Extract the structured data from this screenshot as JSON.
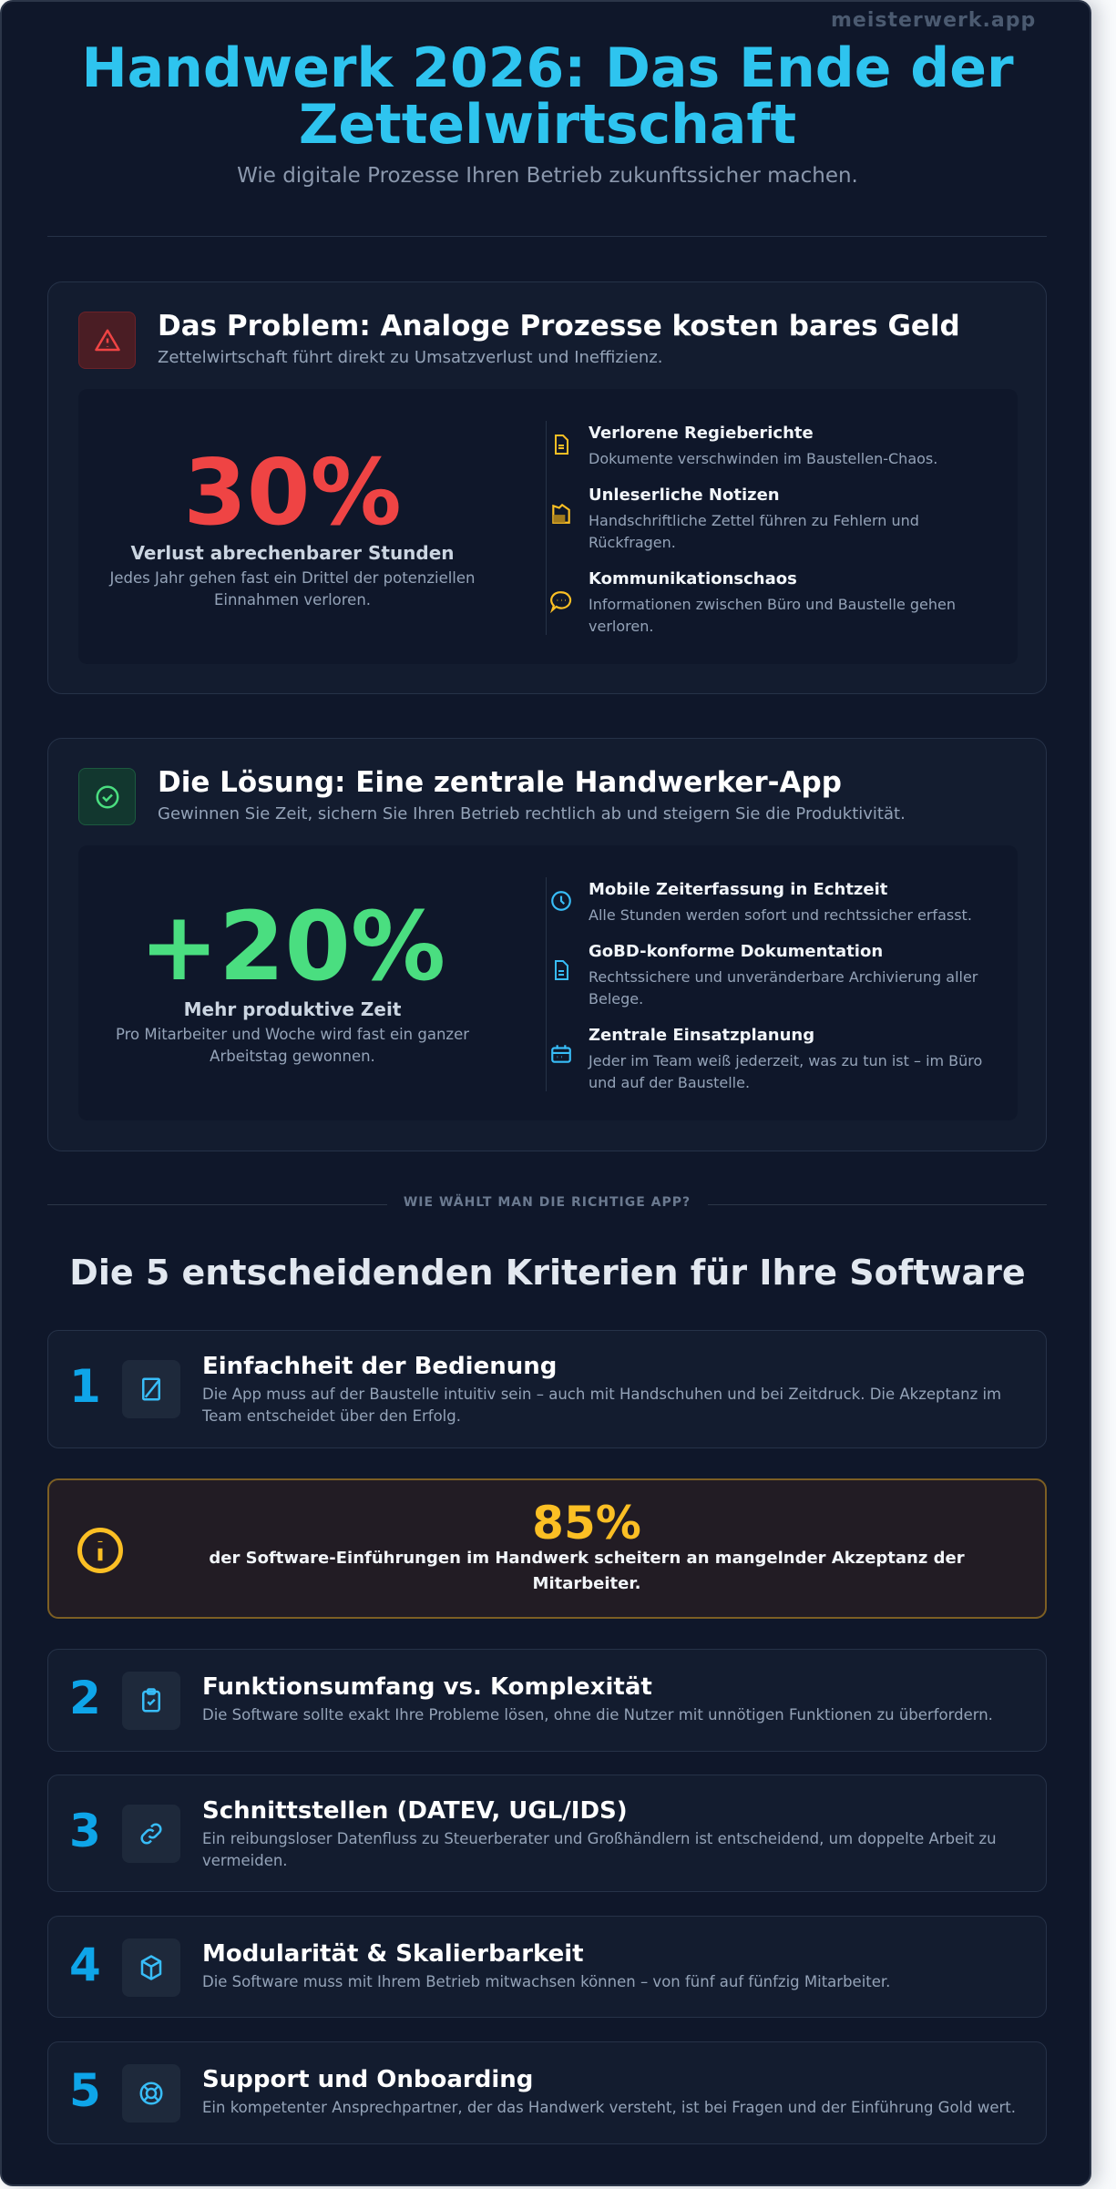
{
  "header": {
    "title_line1": "Handwerk 2026: Das Ende der",
    "title_line2": "Zettelwirtschaft",
    "subtitle": "Wie digitale Prozesse Ihren Betrieb zukunftssicher machen.",
    "watermark": "meisterwerk.app"
  },
  "colors": {
    "accent": "#2ec4ef",
    "problem": "#ef4444",
    "solution": "#4ade80",
    "warning": "#fbbf24",
    "number": "#0ea5e9",
    "background": "#0f172a"
  },
  "problem": {
    "icon": "warning-triangle-icon",
    "heading": "Das Problem: Analoge Prozesse kosten bares Geld",
    "subtitle": "Zettelwirtschaft führt direkt zu Umsatzverlust und Ineffizienz.",
    "stat": "30%",
    "stat_label": "Verlust abrechenbarer Stunden",
    "stat_desc": "Jedes Jahr gehen fast ein Drittel der potenziellen Einnahmen verloren.",
    "items": [
      {
        "icon": "document-icon",
        "title": "Verlorene Regieberichte",
        "desc": "Dokumente verschwinden im Baustellen-Chaos."
      },
      {
        "icon": "crumpled-note-icon",
        "title": "Unleserliche Notizen",
        "desc": "Handschriftliche Zettel führen zu Fehlern und Rückfragen."
      },
      {
        "icon": "chat-bubble-icon",
        "title": "Kommunikationschaos",
        "desc": "Informationen zwischen Büro und Baustelle gehen verloren."
      }
    ]
  },
  "solution": {
    "icon": "check-circle-icon",
    "heading": "Die Lösung: Eine zentrale Handwerker-App",
    "subtitle": "Gewinnen Sie Zeit, sichern Sie Ihren Betrieb rechtlich ab und steigern Sie die Produktivität.",
    "stat": "+20%",
    "stat_label": "Mehr produktive Zeit",
    "stat_desc": "Pro Mitarbeiter und Woche wird fast ein ganzer Arbeitstag gewonnen.",
    "items": [
      {
        "icon": "clock-icon",
        "title": "Mobile Zeiterfassung in Echtzeit",
        "desc": "Alle Stunden werden sofort und rechtssicher erfasst."
      },
      {
        "icon": "file-text-icon",
        "title": "GoBD-konforme Dokumentation",
        "desc": "Rechtssichere und unveränderbare Archivierung aller Belege."
      },
      {
        "icon": "calendar-icon",
        "title": "Zentrale Einsatzplanung",
        "desc": "Jeder im Team weiß jederzeit, was zu tun ist – im Büro und auf der Baustelle."
      }
    ]
  },
  "separator": "WIE WÄHLT MAN DIE RICHTIGE APP?",
  "criteria_title": "Die 5 entscheidenden Kriterien für Ihre Software",
  "criteria": [
    {
      "num": "1",
      "icon": "tablet-pen-icon",
      "title": "Einfachheit der Bedienung",
      "desc": "Die App muss auf der Baustelle intuitiv sein – auch mit Handschuhen und bei Zeitdruck. Die Akzeptanz im Team entscheidet über den Erfolg."
    },
    {
      "num": "2",
      "icon": "clipboard-check-icon",
      "title": "Funktionsumfang vs. Komplexität",
      "desc": "Die Software sollte exakt Ihre Probleme lösen, ohne die Nutzer mit unnötigen Funktionen zu überfordern."
    },
    {
      "num": "3",
      "icon": "link-icon",
      "title": "Schnittstellen (DATEV, UGL/IDS)",
      "desc": "Ein reibungsloser Datenfluss zu Steuerberater und Großhändlern ist entscheidend, um doppelte Arbeit zu vermeiden."
    },
    {
      "num": "4",
      "icon": "cube-icon",
      "title": "Modularität & Skalierbarkeit",
      "desc": "Die Software muss mit Ihrem Betrieb mitwachsen können – von fünf auf fünfzig Mitarbeiter."
    },
    {
      "num": "5",
      "icon": "lifebuoy-icon",
      "title": "Support und Onboarding",
      "desc": "Ein kompetenter Ansprechpartner, der das Handwerk versteht, ist bei Fragen und der Einführung Gold wert."
    }
  ],
  "callout": {
    "icon": "info-circle-icon",
    "stat": "85%",
    "text": "der Software-Einführungen im Handwerk scheitern an mangelnder Akzeptanz der Mitarbeiter."
  }
}
